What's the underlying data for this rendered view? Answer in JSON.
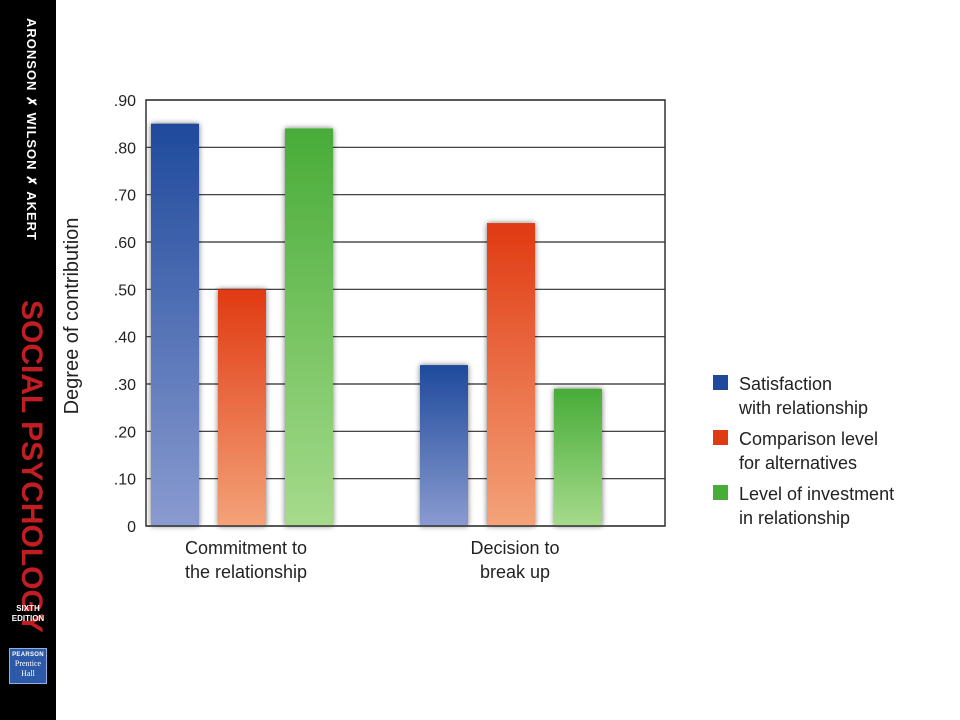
{
  "sidebar": {
    "authors": "ARONSON ✗ WILSON ✗ AKERT",
    "title": "SOCIAL PSYCHOLOGY",
    "edition_line1": "SIXTH",
    "edition_line2": "EDITION",
    "publisher_line1": "PEARSON",
    "publisher_line2": "Prentice",
    "publisher_line3": "Hall"
  },
  "chart_data": {
    "type": "bar",
    "title": "",
    "ylabel": "Degree of contribution",
    "xlabel": "",
    "ylim": [
      0,
      0.9
    ],
    "yticks": [
      {
        "value": 0,
        "label": "0"
      },
      {
        "value": 0.1,
        "label": ".10"
      },
      {
        "value": 0.2,
        "label": ".20"
      },
      {
        "value": 0.3,
        "label": ".30"
      },
      {
        "value": 0.4,
        "label": ".40"
      },
      {
        "value": 0.5,
        "label": ".50"
      },
      {
        "value": 0.6,
        "label": ".60"
      },
      {
        "value": 0.7,
        "label": ".70"
      },
      {
        "value": 0.8,
        "label": ".80"
      },
      {
        "value": 0.9,
        "label": ".90"
      }
    ],
    "grid": true,
    "legend_position": "right",
    "categories": [
      [
        "Commitment to",
        "the relationship"
      ],
      [
        "Decision to",
        "break up"
      ]
    ],
    "series": [
      {
        "name": [
          "Satisfaction",
          "with relationship"
        ],
        "color": "#1f4a9c",
        "light": "#8a9bd0",
        "values": [
          0.85,
          0.34
        ]
      },
      {
        "name": [
          "Comparison level",
          "for alternatives"
        ],
        "color": "#e03a12",
        "light": "#f4a37a",
        "values": [
          0.5,
          0.64
        ]
      },
      {
        "name": [
          "Level of investment",
          "in relationship"
        ],
        "color": "#48ac38",
        "light": "#a6db8c",
        "values": [
          0.84,
          0.29
        ]
      }
    ]
  }
}
